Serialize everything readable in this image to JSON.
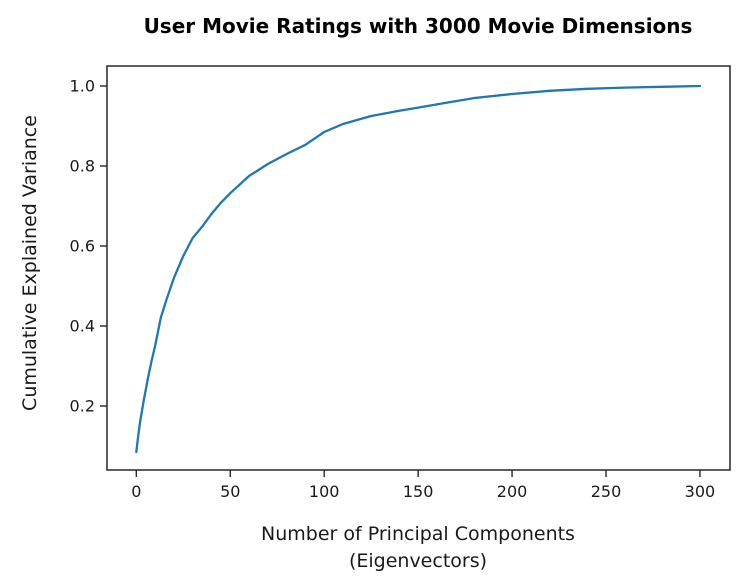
{
  "chart_data": {
    "type": "line",
    "title": "User Movie Ratings with 3000 Movie Dimensions",
    "xlabel": "Number of Principal Components",
    "xlabel_line2": "(Eigenvectors)",
    "ylabel": "Cumulative Explained Variance",
    "xlim": [
      -15.6,
      316
    ],
    "ylim": [
      0.04,
      1.05
    ],
    "xticks": [
      0,
      50,
      100,
      150,
      200,
      250,
      300
    ],
    "yticks": [
      0.2,
      0.4,
      0.6,
      0.8,
      1.0
    ],
    "grid": false,
    "legend": null,
    "colors": {
      "line": "#1f77b4",
      "axis": "#262626",
      "background": "#ffffff"
    },
    "series": [
      {
        "name": "cumulative explained variance",
        "x": [
          0,
          1,
          2,
          4,
          6,
          8,
          10,
          13,
          16,
          20,
          25,
          30,
          35,
          40,
          45,
          50,
          60,
          70,
          80,
          90,
          100,
          110,
          125,
          140,
          150,
          165,
          180,
          200,
          220,
          240,
          260,
          280,
          300
        ],
        "y": [
          0.085,
          0.125,
          0.16,
          0.215,
          0.265,
          0.31,
          0.35,
          0.42,
          0.465,
          0.52,
          0.575,
          0.62,
          0.648,
          0.68,
          0.708,
          0.732,
          0.775,
          0.805,
          0.83,
          0.853,
          0.885,
          0.905,
          0.925,
          0.938,
          0.946,
          0.958,
          0.97,
          0.98,
          0.988,
          0.993,
          0.996,
          0.998,
          1.0
        ]
      }
    ]
  }
}
